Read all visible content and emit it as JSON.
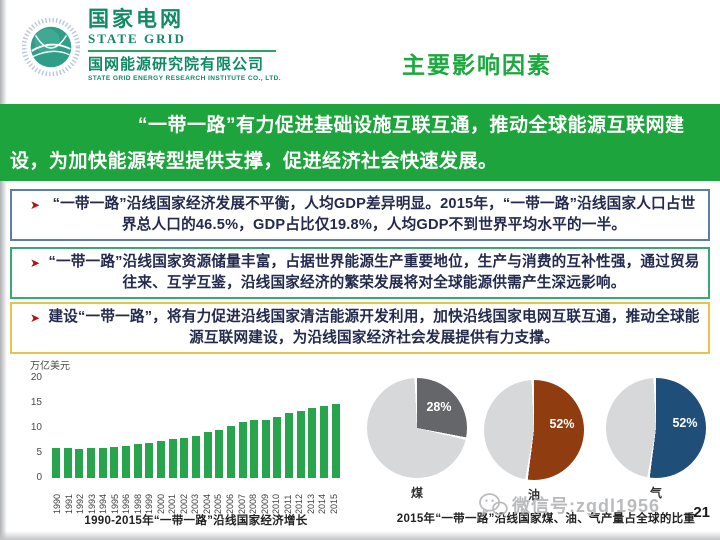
{
  "header": {
    "logo": {
      "cn_name": "国家电网",
      "en_name": "STATE GRID",
      "institute_cn": "国网能源研究院有限公司",
      "institute_en": "STATE GRID ENERGY RESEARCH INSTITUTE CO., LTD.",
      "brand_color": "#0f8a65"
    },
    "title": "主要影响因素",
    "title_color": "#1ca83e"
  },
  "banner": {
    "text": "“一带一路”有力促进基础设施互联互通，推动全球能源互联网建设，为加快能源转型提供支撑，促进经济社会快速发展。",
    "background_color": "#1ea43c"
  },
  "bullets": [
    {
      "text": "“一带一路”沿线国家经济发展不平衡，人均GDP差异明显。2015年，“一带一路”沿线国家人口占世界总人口的46.5%，GDP占比仅19.8%，人均GDP不到世界平均水平的一半。",
      "border_color": "#5b7fa6"
    },
    {
      "text": "“一带一路”沿线国家资源储量丰富，占据世界能源生产重要地位，生产与消费的互补性强，通过贸易往来、互学互鉴，沿线国家经济的繁荣发展将对全球能源供需产生深远影响。",
      "border_color": "#35ab73"
    },
    {
      "text": "建设“一带一路”，将有力促进沿线国家清洁能源开发利用，加快沿线国家电网互联互通，推动全球能源互联网建设，为沿线国家经济社会发展提供有力支撑。",
      "border_color": "#e6c34c"
    }
  ],
  "chart_data": [
    {
      "type": "bar",
      "title": "1990-2015年“一带一路”沿线国家经济增长",
      "xlabel": "",
      "ylabel": "万亿美元",
      "ylim": [
        0,
        20
      ],
      "yticks": [
        0,
        5,
        10,
        15,
        20
      ],
      "grid": false,
      "bar_color": "#28a44c",
      "categories": [
        "1990",
        "1991",
        "1992",
        "1993",
        "1994",
        "1995",
        "1996",
        "1998",
        "1999",
        "2000",
        "2001",
        "2002",
        "2003",
        "2004",
        "2005",
        "2006",
        "2007",
        "2008",
        "2009",
        "2010",
        "2011",
        "2012",
        "2013",
        "2014",
        "2015"
      ],
      "values": [
        6.0,
        6.0,
        5.9,
        6.0,
        6.0,
        6.2,
        6.5,
        6.8,
        7.0,
        7.5,
        7.8,
        8.1,
        8.5,
        9.2,
        9.7,
        10.4,
        11.2,
        11.7,
        11.6,
        12.3,
        13.0,
        13.5,
        14.0,
        14.4,
        14.8
      ]
    },
    {
      "type": "pie",
      "title": "2015年“一带一路”沿线国家煤、油、气产量占全球的比重",
      "rest_color": "#d7d8da",
      "pies": [
        {
          "label": "煤",
          "value": 28,
          "value_text": "28%",
          "color": "#64666a",
          "pct_x": 72,
          "pct_y": 29
        },
        {
          "label": "油",
          "value": 52,
          "value_text": "52%",
          "color": "#8f3c10",
          "pct_x": 78,
          "pct_y": 44
        },
        {
          "label": "气",
          "value": 52,
          "value_text": "52%",
          "color": "#1f4e79",
          "pct_x": 79,
          "pct_y": 45
        }
      ]
    }
  ],
  "watermark": {
    "text": "微信号:zgdl1956"
  },
  "page_number": "21"
}
